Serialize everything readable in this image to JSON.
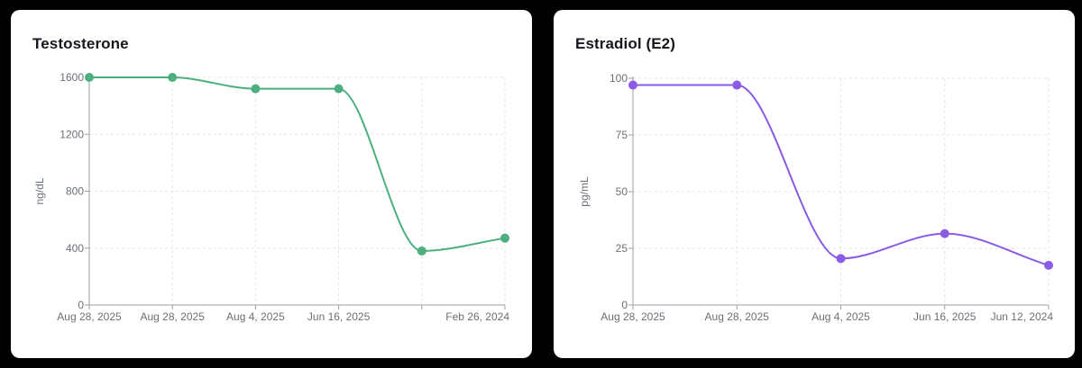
{
  "chart_data": [
    {
      "type": "line",
      "title": "Testosterone",
      "ylabel": "ng/dL",
      "xlabel": "",
      "categories": [
        "Aug 28, 2025",
        "Aug 28, 2025",
        "Aug 4, 2025",
        "Jun 16, 2025",
        "",
        "Feb 26, 2024"
      ],
      "values": [
        1600,
        1600,
        1520,
        1520,
        380,
        470
      ],
      "ylim": [
        0,
        1600
      ],
      "yticks": [
        "0",
        "400",
        "800",
        "1200",
        "1600"
      ],
      "ytick_values": [
        0,
        400,
        800,
        1200,
        1600
      ],
      "color": "#4caf7d",
      "grid": true
    },
    {
      "type": "line",
      "title": "Estradiol (E2)",
      "ylabel": "pg/mL",
      "xlabel": "",
      "categories": [
        "Aug 28, 2025",
        "Aug 28, 2025",
        "Aug 4, 2025",
        "Jun 16, 2025",
        "Jun 12, 2024"
      ],
      "values": [
        97,
        97,
        20.5,
        31.5,
        17.5
      ],
      "ylim": [
        0,
        100
      ],
      "yticks": [
        "0",
        "25",
        "50",
        "75",
        "100"
      ],
      "ytick_values": [
        0,
        25,
        50,
        75,
        100
      ],
      "color": "#8a5ce6",
      "grid": true
    }
  ]
}
